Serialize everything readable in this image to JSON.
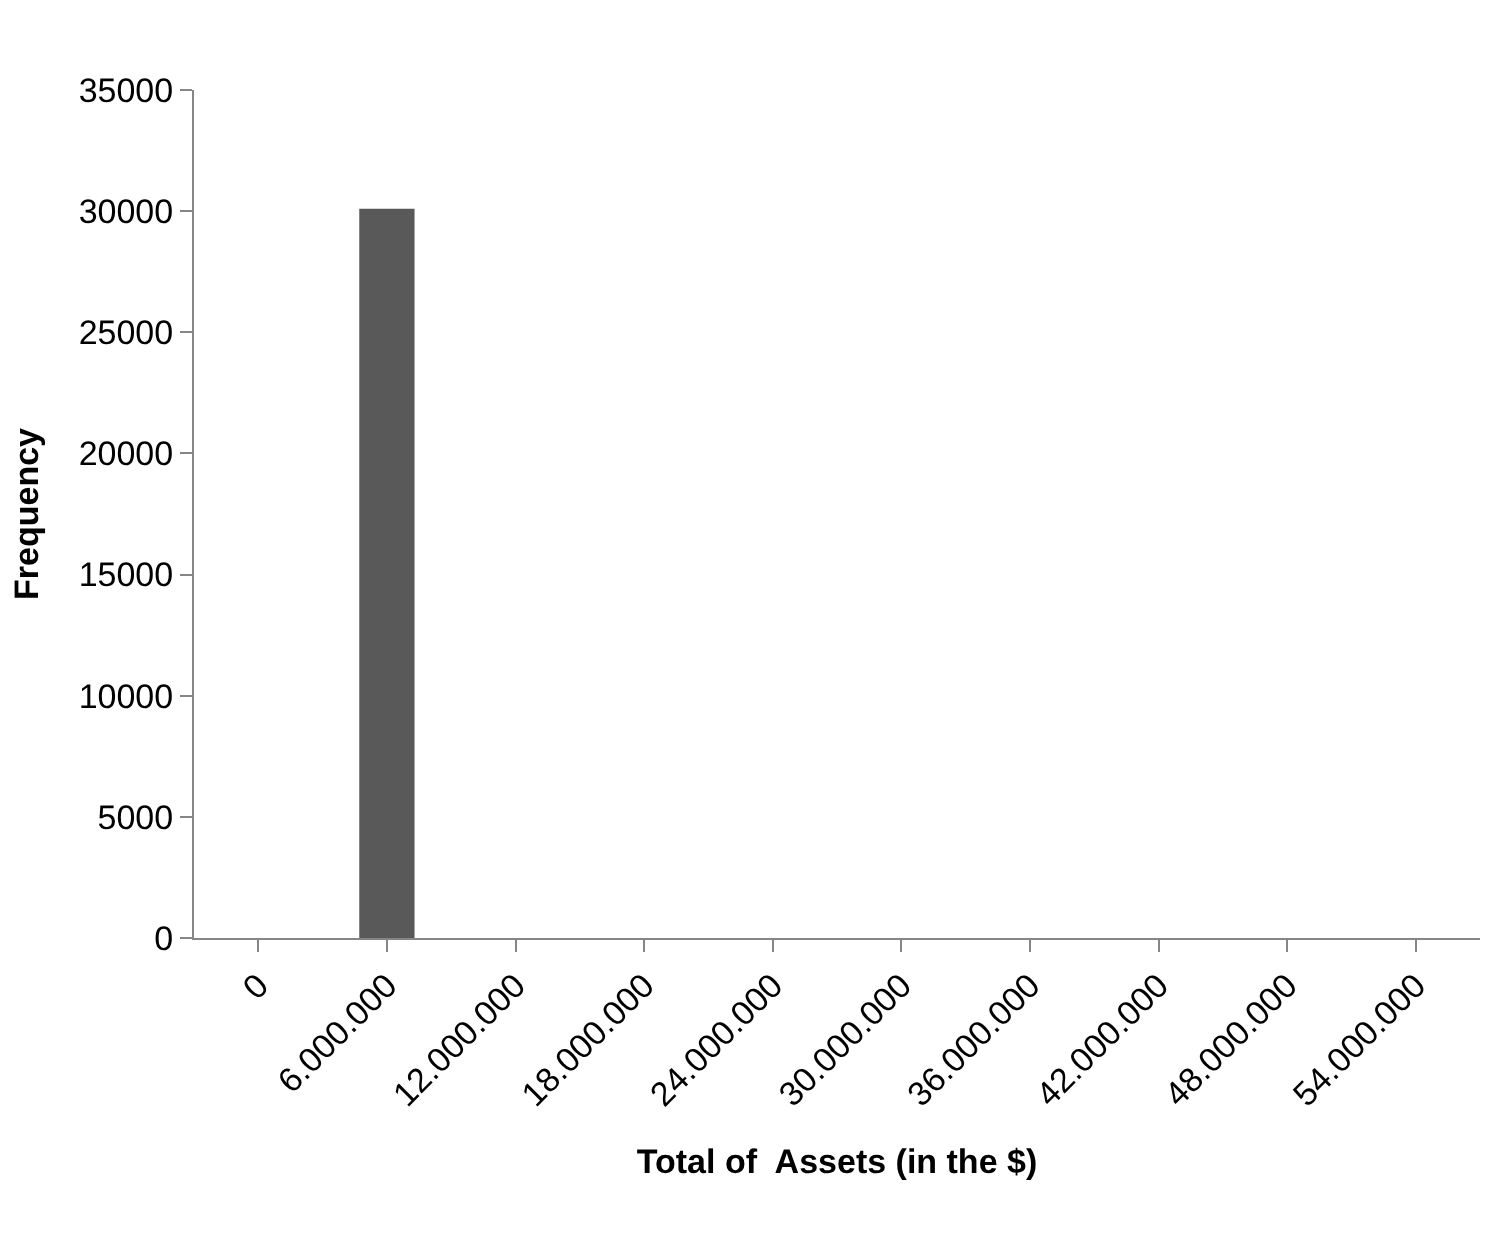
{
  "chart_data": {
    "type": "bar",
    "xlabel": "Total of  Assets (in the $)",
    "ylabel": "Frequency",
    "categories": [
      "0",
      "6.000.000",
      "12.000.000",
      "18.000.000",
      "24.000.000",
      "30.000.000",
      "36.000.000",
      "42.000.000",
      "48.000.000",
      "54.000.000"
    ],
    "values": [
      0,
      30100,
      0,
      0,
      0,
      0,
      0,
      0,
      0,
      0
    ],
    "color": "#595959",
    "ylim": [
      0,
      35000
    ],
    "yticks": [
      0,
      5000,
      10000,
      15000,
      20000,
      25000,
      30000,
      35000
    ],
    "legend": false
  }
}
